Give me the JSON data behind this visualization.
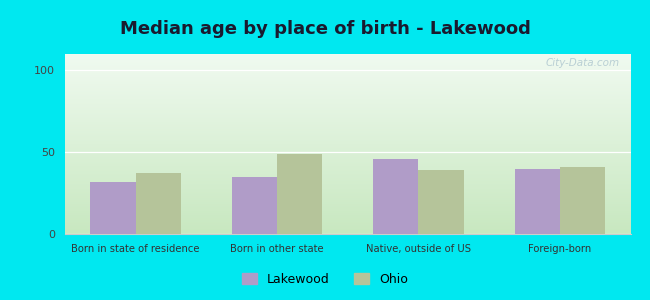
{
  "title": "Median age by place of birth - Lakewood",
  "categories": [
    "Born in state of residence",
    "Born in other state",
    "Native, outside of US",
    "Foreign-born"
  ],
  "lakewood_values": [
    32,
    35,
    46,
    40
  ],
  "ohio_values": [
    37,
    49,
    39,
    41
  ],
  "lakewood_color": "#b09cc8",
  "ohio_color": "#b5c49a",
  "ylim": [
    0,
    110
  ],
  "yticks": [
    0,
    50,
    100
  ],
  "background_color": "#00e8f0",
  "title_fontsize": 13,
  "legend_labels": [
    "Lakewood",
    "Ohio"
  ],
  "bar_width": 0.32,
  "watermark": "City-Data.com",
  "grad_top": "#f0faf0",
  "grad_bottom": "#c8e8c0"
}
